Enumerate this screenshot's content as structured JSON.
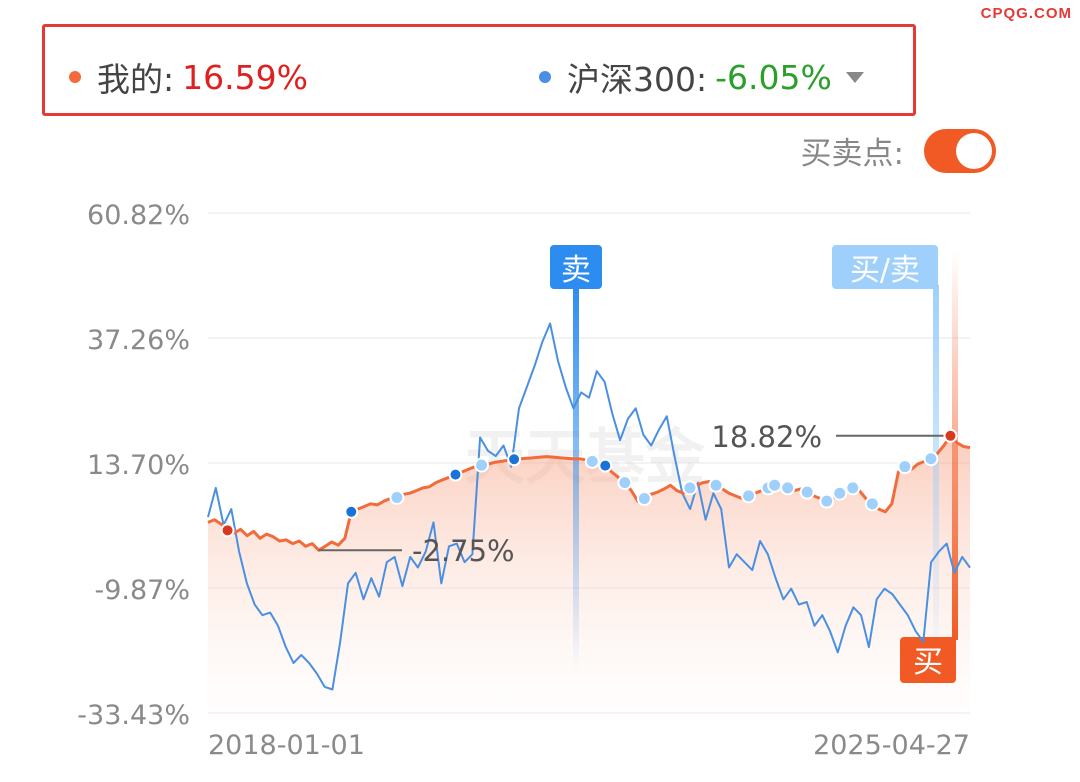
{
  "watermark": "CPQG.COM",
  "legend": {
    "mine": {
      "label": "我的:",
      "value": "16.59%",
      "dot_color": "#f26b3a",
      "value_color": "#e02020"
    },
    "index": {
      "label": "沪深300:",
      "value": "-6.05%",
      "dot_color": "#4a90e2",
      "value_color": "#2aa02a"
    }
  },
  "toggle": {
    "label": "买卖点:",
    "on": true
  },
  "chart_data": {
    "type": "line",
    "y_ticks": [
      "60.82%",
      "37.26%",
      "13.70%",
      "-9.87%",
      "-33.43%"
    ],
    "x_ticks": [
      "2018-01-01",
      "2025-04-27"
    ],
    "ylim": [
      -33.43,
      60.82
    ],
    "grid": true,
    "annotations": {
      "max_label": "18.82%",
      "min_label": "-2.75%",
      "sell_tag": "卖",
      "buysell_tag": "买/卖",
      "buy_tag": "买",
      "faint_watermark": "天天基金"
    },
    "series": [
      {
        "color": "#f26b3a",
        "values": [
          2.5,
          3.0,
          2.2,
          1.0,
          0.5,
          1.2,
          0.0,
          0.8,
          -0.5,
          0.3,
          -0.2,
          -1.0,
          -0.8,
          -1.5,
          -1.0,
          -2.0,
          -1.5,
          -2.75,
          -2.0,
          -1.2,
          -1.8,
          -0.5,
          4.5,
          5.0,
          5.5,
          6.0,
          5.8,
          6.5,
          7.0,
          7.2,
          7.8,
          8.0,
          8.5,
          9.0,
          9.2,
          10.0,
          10.5,
          11.0,
          11.5,
          12.0,
          12.5,
          13.0,
          13.3,
          13.5,
          13.8,
          14.0,
          14.2,
          14.4,
          14.5,
          14.6,
          14.7,
          14.8,
          14.9,
          14.8,
          14.7,
          14.6,
          14.5,
          14.5,
          14.3,
          14.0,
          13.8,
          13.2,
          12.0,
          11.0,
          10.0,
          8.5,
          6.5,
          7.0,
          7.8,
          8.2,
          8.8,
          9.5,
          8.5,
          8.0,
          9.0,
          9.5,
          10.0,
          10.2,
          9.5,
          8.8,
          8.0,
          7.5,
          7.0,
          7.5,
          8.0,
          8.5,
          9.0,
          9.5,
          9.2,
          9.0,
          8.5,
          8.8,
          8.2,
          7.5,
          7.0,
          6.5,
          7.0,
          8.0,
          8.5,
          9.0,
          8.5,
          7.0,
          6.0,
          5.0,
          4.5,
          6.0,
          12.0,
          13.0,
          12.5,
          13.5,
          14.0,
          14.5,
          15.5,
          17.0,
          18.82,
          17.5,
          16.8,
          16.59
        ],
        "markers": [
          {
            "i": 3,
            "kind": "buy"
          },
          {
            "i": 22,
            "kind": "sell"
          },
          {
            "i": 29,
            "kind": "buysell"
          },
          {
            "i": 38,
            "kind": "sell"
          },
          {
            "i": 42,
            "kind": "buysell"
          },
          {
            "i": 47,
            "kind": "sell"
          },
          {
            "i": 59,
            "kind": "buysell"
          },
          {
            "i": 61,
            "kind": "sell"
          },
          {
            "i": 64,
            "kind": "buysell"
          },
          {
            "i": 67,
            "kind": "buysell"
          },
          {
            "i": 74,
            "kind": "buysell"
          },
          {
            "i": 78,
            "kind": "buysell"
          },
          {
            "i": 83,
            "kind": "buysell"
          },
          {
            "i": 86,
            "kind": "buysell"
          },
          {
            "i": 87,
            "kind": "buysell"
          },
          {
            "i": 89,
            "kind": "buysell"
          },
          {
            "i": 92,
            "kind": "buysell"
          },
          {
            "i": 95,
            "kind": "buysell"
          },
          {
            "i": 97,
            "kind": "buysell"
          },
          {
            "i": 99,
            "kind": "buysell"
          },
          {
            "i": 102,
            "kind": "buysell"
          },
          {
            "i": 107,
            "kind": "buysell"
          },
          {
            "i": 111,
            "kind": "buysell"
          },
          {
            "i": 114,
            "kind": "buy"
          }
        ]
      },
      {
        "color": "#4a90e2",
        "values": [
          3.5,
          9.0,
          2.0,
          5.0,
          -3.0,
          -9.0,
          -13.0,
          -15.0,
          -14.5,
          -17.0,
          -21.0,
          -24.0,
          -22.5,
          -24.0,
          -26.0,
          -28.5,
          -29.0,
          -20.0,
          -9.0,
          -7.0,
          -12.0,
          -8.0,
          -11.5,
          -5.0,
          -4.0,
          -9.5,
          -4.0,
          -6.0,
          -3.0,
          2.5,
          -9.0,
          -2.0,
          -1.5,
          -5.0,
          -3.5,
          18.5,
          16.0,
          15.0,
          17.0,
          13.0,
          24.0,
          28.0,
          32.0,
          36.5,
          40.0,
          33.0,
          28.0,
          24.0,
          27.0,
          26.0,
          31.0,
          29.0,
          23.0,
          18.0,
          22.0,
          24.0,
          19.0,
          17.0,
          20.0,
          22.5,
          15.0,
          8.0,
          5.0,
          10.0,
          3.0,
          8.0,
          5.0,
          -6.0,
          -3.5,
          -5.0,
          -6.5,
          -1.0,
          -3.5,
          -8.0,
          -12.0,
          -10.0,
          -13.0,
          -12.5,
          -17.0,
          -15.0,
          -18.0,
          -22.0,
          -17.0,
          -13.5,
          -15.0,
          -21.0,
          -12.0,
          -10.0,
          -11.0,
          -13.0,
          -15.0,
          -18.0,
          -20.0,
          -5.0,
          -3.0,
          -1.5,
          -7.0,
          -4.0,
          -6.05
        ]
      }
    ]
  }
}
